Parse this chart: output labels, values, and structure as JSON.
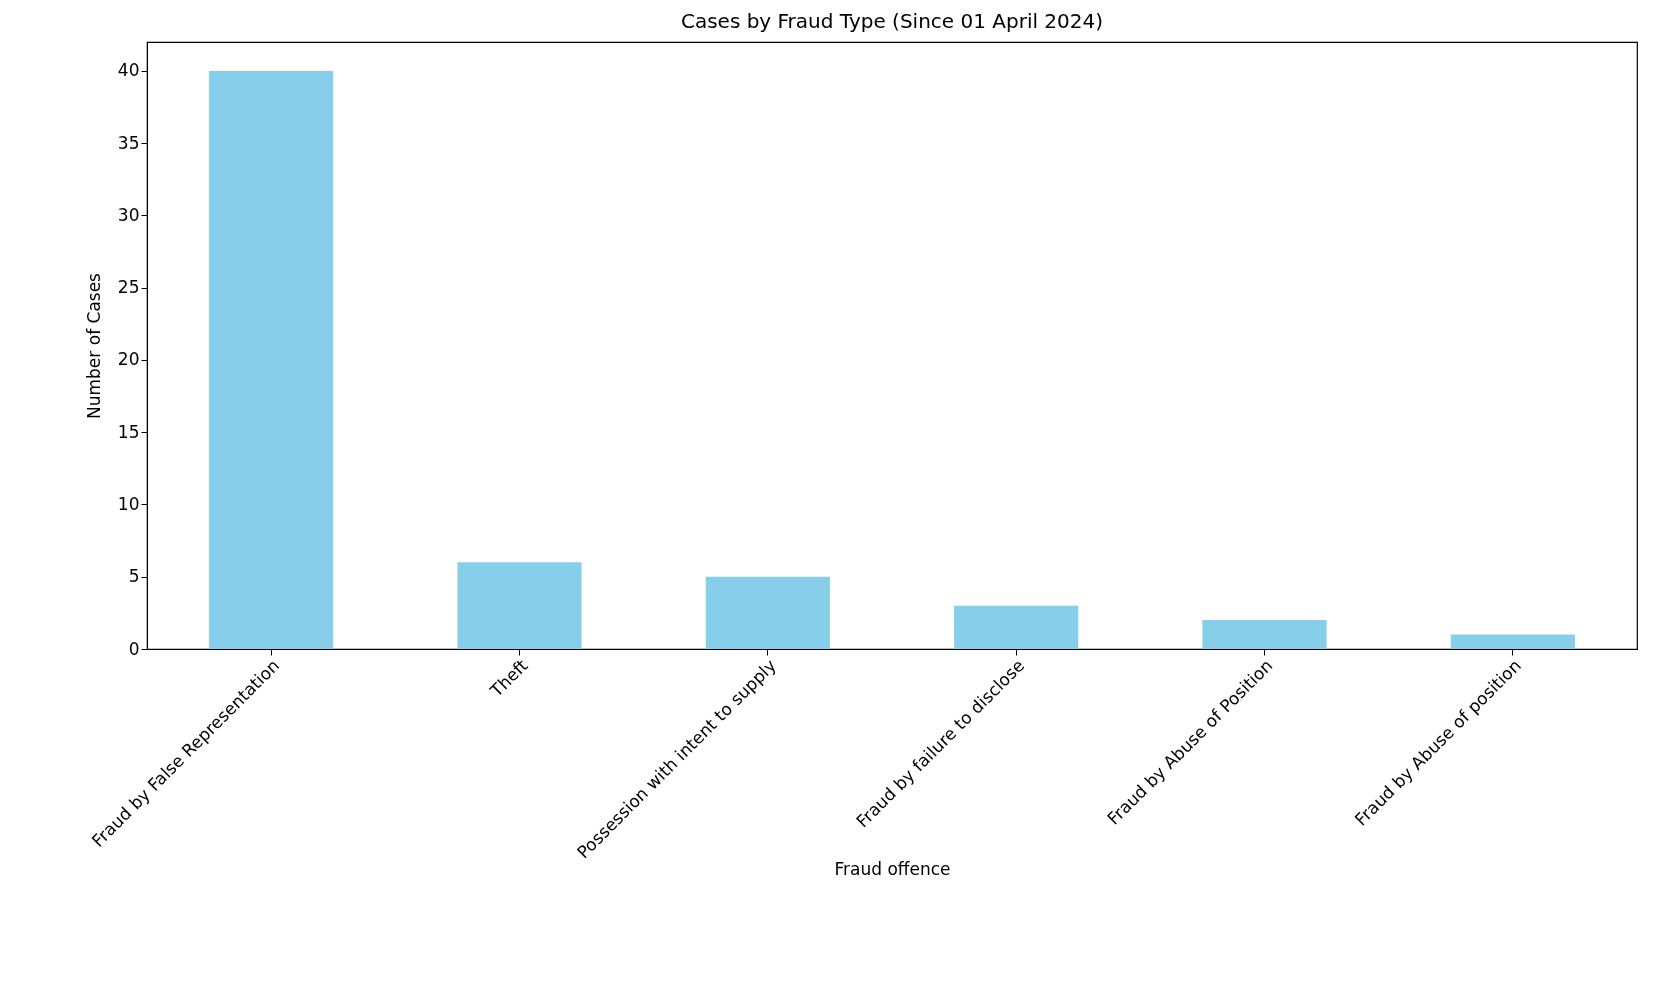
{
  "chart_data": {
    "type": "bar",
    "title": "Cases by Fraud Type (Since 01 April 2024)",
    "xlabel": "Fraud offence",
    "ylabel": "Number of Cases",
    "categories": [
      "Fraud by False Representation",
      "Theft",
      "Possession with intent to supply",
      "Fraud by failure to disclose",
      "Fraud by Abuse of Position",
      "Fraud by Abuse of position"
    ],
    "values": [
      40,
      6,
      5,
      3,
      2,
      1
    ],
    "color": "#87ceeb",
    "ylim": [
      0,
      42
    ],
    "yticks": [
      0,
      5,
      10,
      15,
      20,
      25,
      30,
      35,
      40
    ],
    "grid": false
  }
}
